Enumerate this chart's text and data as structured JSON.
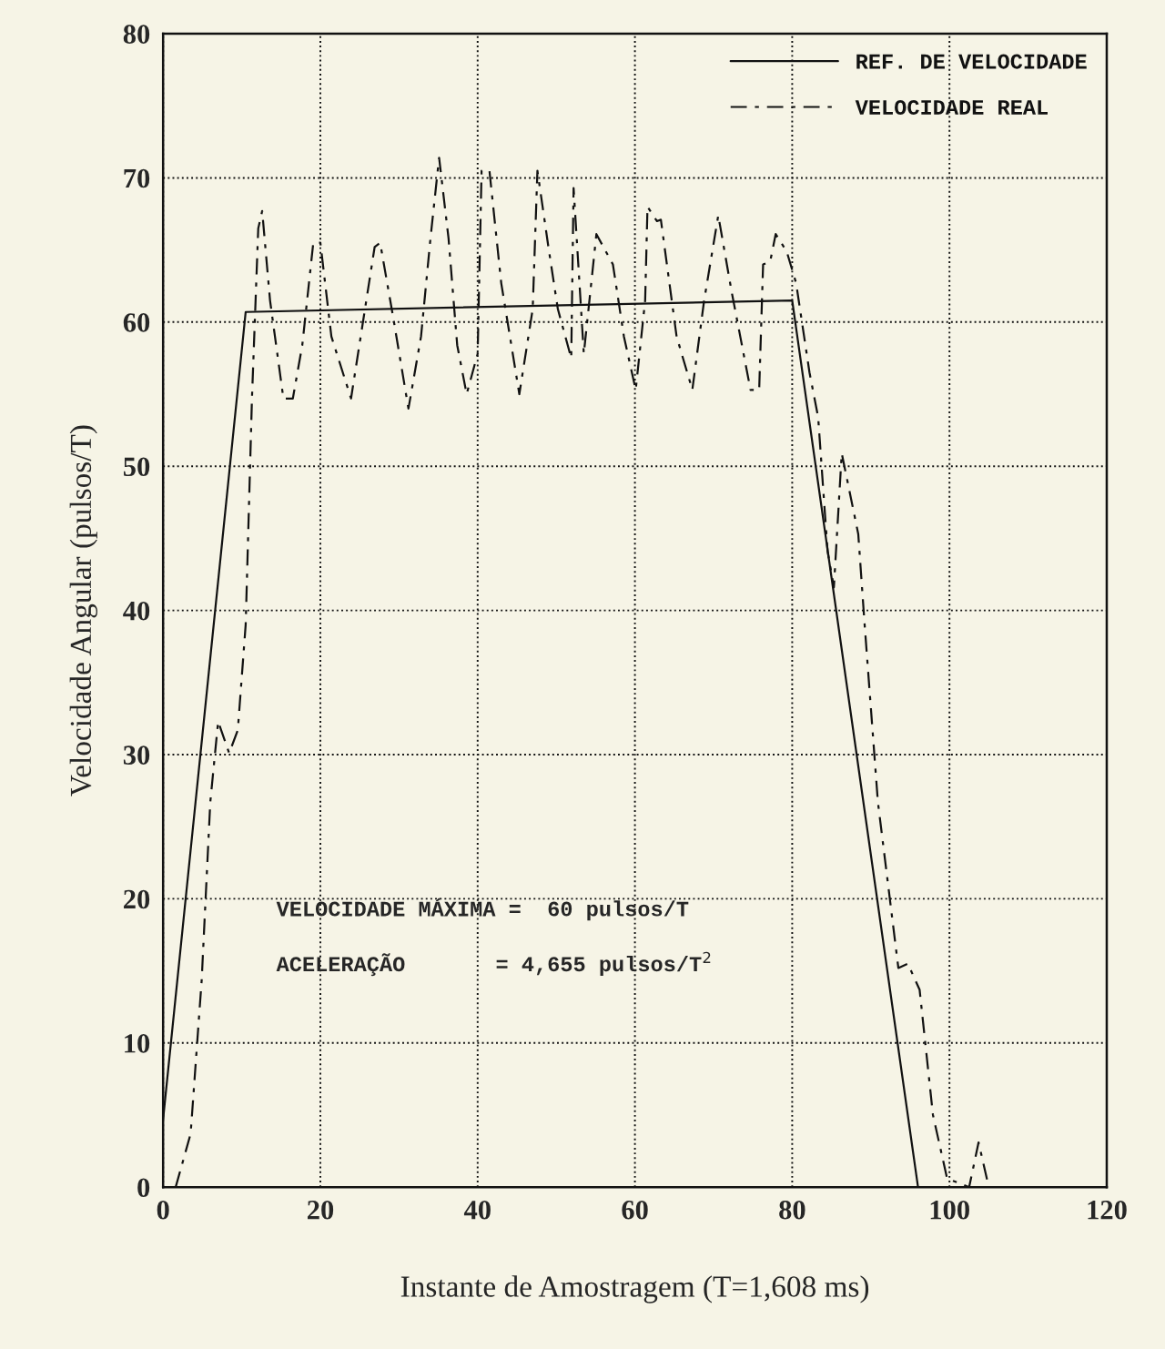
{
  "chart_data": {
    "type": "line",
    "xlabel": "Instante de Amostragem (T=1,608 ms)",
    "ylabel": "Velocidade Angular (pulsos/T)",
    "xlim": [
      0,
      120
    ],
    "ylim": [
      0,
      80
    ],
    "xticks": [
      0,
      20,
      40,
      60,
      80,
      100,
      120
    ],
    "yticks": [
      0,
      10,
      20,
      30,
      40,
      50,
      60,
      70,
      80
    ],
    "grid": true,
    "legend": "top right",
    "annotations": [
      "VELOCIDADE MÁXIMA =  60 pulsos/T",
      "ACELERAÇÃO       = 4,655 pulsos/T$^{2}$"
    ],
    "series": [
      {
        "name": "REF. DE VELOCIDADE",
        "color": "#111111",
        "line_style": "solid",
        "x": [
          0,
          10.5,
          80,
          96
        ],
        "values": [
          4.7,
          60.7,
          61.5,
          0
        ]
      },
      {
        "name": "VELOCIDADE REAL",
        "color": "#111111",
        "line_style": "dashed",
        "x": [
          1.6,
          3.5,
          4.9,
          6,
          7,
          8.4,
          9.5,
          10.5,
          11.3,
          12.1,
          12.6,
          13.6,
          15.3,
          16.5,
          17.7,
          19.1,
          20,
          21.4,
          23.9,
          26.9,
          27.6,
          29.3,
          31.2,
          32.8,
          34,
          35.1,
          36.3,
          37.4,
          38.6,
          40,
          40.5,
          41.5,
          43,
          45.3,
          47,
          47.6,
          49,
          50.2,
          51.9,
          52.2,
          53.5,
          55.1,
          57.2,
          58.6,
          60.1,
          61.3,
          61.6,
          62.8,
          63.3,
          65.3,
          67.3,
          68.8,
          70.6,
          72.3,
          74.7,
          75.8,
          76.3,
          77.2,
          77.9,
          79.3,
          80.5,
          82.2,
          83.3,
          84.5,
          85.3,
          86.3,
          88.4,
          89.2,
          90.9,
          93.5,
          94.7,
          96.2,
          97.9,
          99.7,
          102.5,
          103.7,
          105
        ],
        "values": [
          0,
          3.7,
          14.3,
          26.7,
          32.3,
          30.1,
          31.7,
          39,
          54.7,
          66.5,
          67.7,
          61.5,
          54.7,
          54.7,
          58.4,
          65.5,
          65.5,
          59,
          54.7,
          65.2,
          65.5,
          60.2,
          54,
          59,
          65.8,
          71.4,
          65.8,
          58.4,
          55,
          57.8,
          70.5,
          70.5,
          62.7,
          55,
          60.9,
          70.5,
          65.2,
          60.9,
          57.5,
          69.3,
          57.8,
          66.1,
          64,
          59,
          55.3,
          61.5,
          68,
          67,
          67.1,
          59,
          55.3,
          61.5,
          67.4,
          62.1,
          55.3,
          55.3,
          64,
          64.2,
          66.1,
          64.9,
          62.7,
          56.5,
          53.4,
          44.1,
          41.6,
          50.9,
          45.3,
          39.1,
          26.7,
          15.2,
          15.5,
          13.7,
          5,
          0.6,
          0,
          3.1,
          0
        ]
      }
    ]
  }
}
